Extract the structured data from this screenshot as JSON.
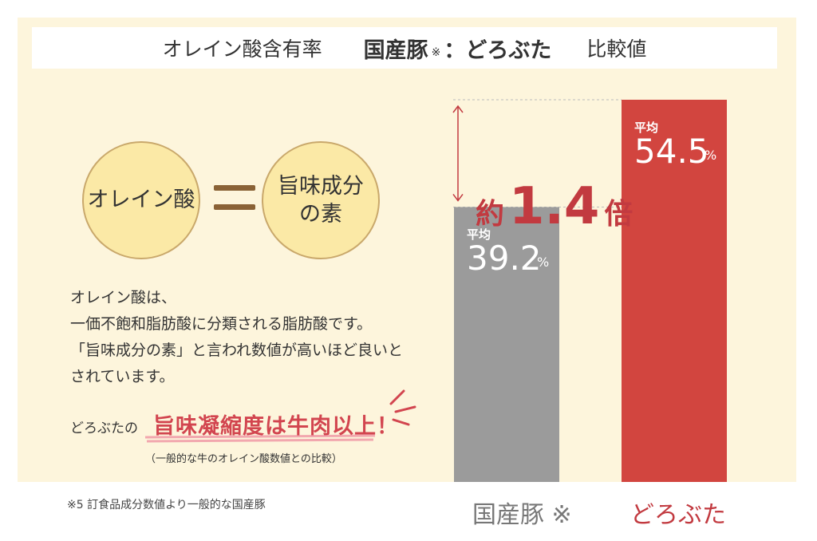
{
  "title": {
    "part1": "オレイン酸含有率",
    "part2": "国産豚",
    "mark": "※",
    "colon": "：",
    "part3": "どろぶた",
    "part4": "比較値"
  },
  "equation": {
    "left": "オレイン酸",
    "right_line1": "旨味成分",
    "right_line2": "の素"
  },
  "description": [
    "オレイン酸は、",
    "一価不飽和脂肪酸に分類される脂肪酸です。",
    "「旨味成分の素」と言われ数値が高いほど良いと",
    "されています。"
  ],
  "catch": {
    "prefix": "どろぶたの",
    "headline": "旨味凝縮度は牛肉以上！",
    "note": "（一般的な牛のオレイン酸数値との比較）"
  },
  "footnote": "※5 訂食品成分数値より一般的な国産豚",
  "ratio": {
    "prefix": "約",
    "value": "1.4",
    "suffix": "倍"
  },
  "colors": {
    "gray_bar": "#9b9b9b",
    "red_bar": "#d2453f",
    "accent_text": "#c23a40",
    "panel": "#fdf5dc",
    "circle": "#fbe9a6"
  },
  "chart_data": {
    "type": "bar",
    "title": "オレイン酸含有率",
    "categories": [
      "国産豚 ※",
      "どろぶた"
    ],
    "values": [
      39.2,
      54.5
    ],
    "unit": "%",
    "value_prefix": "平均",
    "value_texts": [
      "39.2",
      "54.5"
    ],
    "ylim": [
      0,
      54.5
    ],
    "grid": false,
    "legend": "none"
  }
}
